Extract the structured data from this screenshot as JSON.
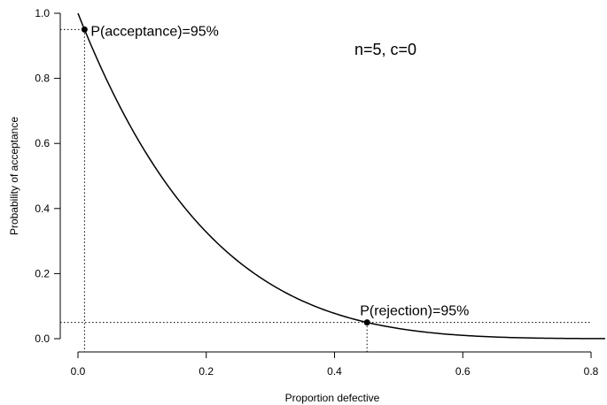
{
  "chart_data": {
    "type": "line",
    "xlabel": "Proportion defective",
    "ylabel": "Probability of acceptance",
    "xlim": [
      0.0,
      0.8
    ],
    "ylim": [
      0.0,
      1.0
    ],
    "x_ticks": [
      "0.0",
      "0.2",
      "0.4",
      "0.6",
      "0.8"
    ],
    "x_tick_values": [
      0.0,
      0.2,
      0.4,
      0.6,
      0.8
    ],
    "y_ticks": [
      "0.0",
      "0.2",
      "0.4",
      "0.6",
      "0.8",
      "1.0"
    ],
    "y_tick_values": [
      0.0,
      0.2,
      0.4,
      0.6,
      0.8,
      1.0
    ],
    "grid": false,
    "curve": {
      "sample_size": 5,
      "acceptance_number": 0,
      "x": [
        0.0,
        0.01,
        0.05,
        0.1,
        0.15,
        0.2,
        0.25,
        0.3,
        0.35,
        0.4,
        0.45,
        0.5,
        0.55,
        0.6,
        0.65,
        0.7,
        0.75,
        0.8
      ],
      "y": [
        1.0,
        0.951,
        0.774,
        0.59,
        0.444,
        0.328,
        0.237,
        0.168,
        0.116,
        0.078,
        0.05,
        0.031,
        0.018,
        0.01,
        0.005,
        0.002,
        0.001,
        0.0
      ]
    },
    "points": [
      {
        "x": 0.0102,
        "y": 0.95,
        "label": "P(acceptance)=95%"
      },
      {
        "x": 0.4507,
        "y": 0.05,
        "label": "P(rejection)=95%"
      }
    ],
    "params_text": "n=5, c=0"
  }
}
